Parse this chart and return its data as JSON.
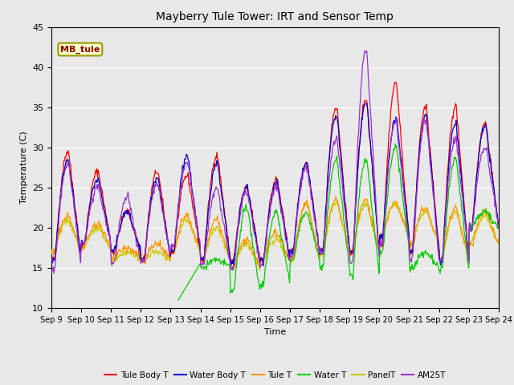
{
  "title": "Mayberry Tule Tower: IRT and Sensor Temp",
  "xlabel": "Time",
  "ylabel": "Temperature (C)",
  "ylim": [
    10,
    45
  ],
  "yticks": [
    10,
    15,
    20,
    25,
    30,
    35,
    40,
    45
  ],
  "x_labels": [
    "Sep 9",
    "Sep 10",
    "Sep 11",
    "Sep 12",
    "Sep 13",
    "Sep 14",
    "Sep 15",
    "Sep 16",
    "Sep 17",
    "Sep 18",
    "Sep 19",
    "Sep 20",
    "Sep 21",
    "Sep 22",
    "Sep 23",
    "Sep 24"
  ],
  "series_names": [
    "Tule Body T",
    "Water Body T",
    "Tule T",
    "Water T",
    "PanelT",
    "AM25T"
  ],
  "series_colors": [
    "#ff0000",
    "#0000cc",
    "#ff9900",
    "#00cc00",
    "#cccc00",
    "#9933cc"
  ],
  "watermark_text": "MB_tule",
  "plot_bg_color": "#e8e8e8",
  "fig_bg_color": "#e8e8e8",
  "title_fontsize": 10,
  "axis_fontsize": 8,
  "tick_fontsize": 7
}
